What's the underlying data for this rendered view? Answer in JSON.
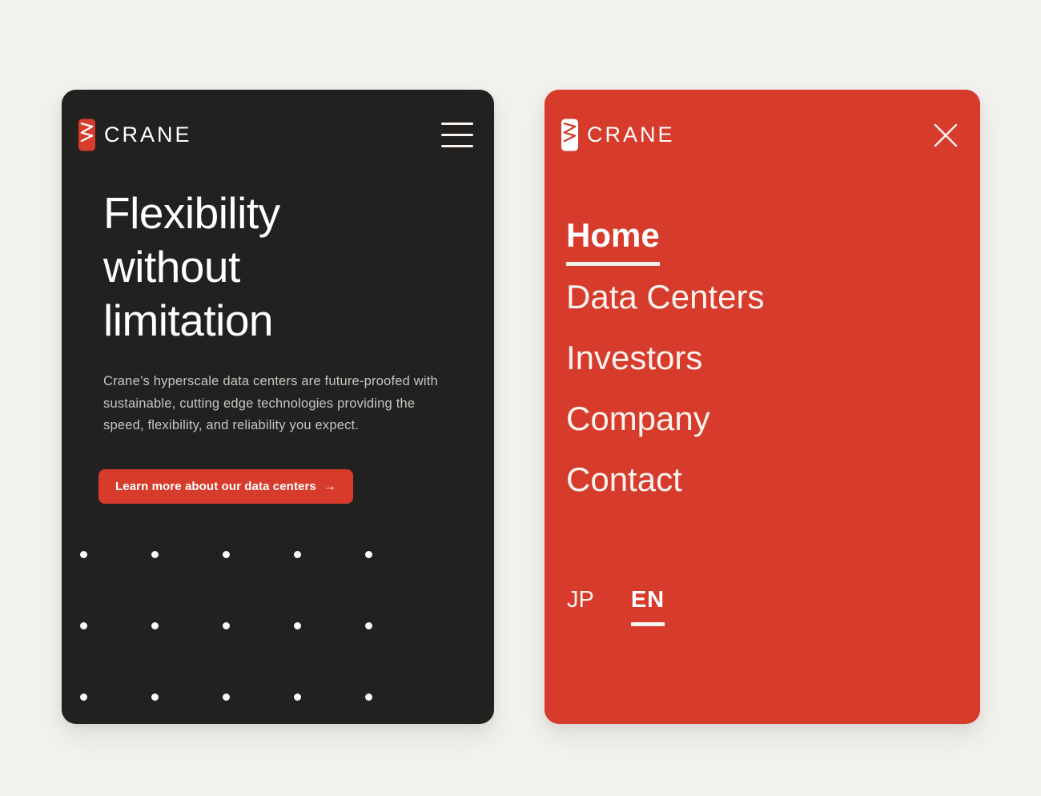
{
  "colors": {
    "page_background": "#f2f1ee",
    "dark_screen_background": "#232120",
    "brand_red": "#d63b2b",
    "heading_white": "#ffffff",
    "muted_body_text": "#c7c5c2",
    "warm_white_text": "#fbf3ee"
  },
  "icons": {
    "menu": "hamburger-icon",
    "close": "close-icon",
    "logo": "crane-logo-mark",
    "cta_arrow": "arrow-right-icon"
  },
  "home_screen": {
    "brand": "CRANE",
    "heading_lines": [
      "Flexibility",
      "without",
      "limitation"
    ],
    "body_text": "Crane’s hyperscale data centers are future-proofed with sustainable, cutting edge technologies providing the speed, flexibility, and reliability you expect.",
    "cta": {
      "label": "Learn more about our data centers",
      "arrow": "→"
    },
    "dot_grid": {
      "rows": 3,
      "cols": 5
    }
  },
  "menu_screen": {
    "brand": "CRANE",
    "items": [
      {
        "label": "Home",
        "active": true
      },
      {
        "label": "Data Centers",
        "active": false
      },
      {
        "label": "Investors",
        "active": false
      },
      {
        "label": "Company",
        "active": false
      },
      {
        "label": "Contact",
        "active": false
      }
    ],
    "languages": [
      {
        "code": "JP",
        "active": false
      },
      {
        "code": "EN",
        "active": true
      }
    ]
  }
}
